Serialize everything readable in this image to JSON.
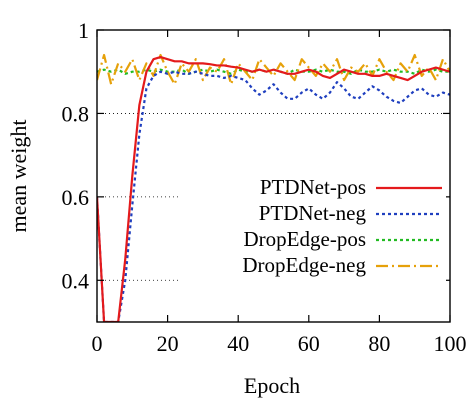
{
  "chart_data": {
    "type": "line",
    "xlabel": "Epoch",
    "ylabel": "mean weight",
    "xlim": [
      0,
      100
    ],
    "ylim": [
      0.3,
      1.0
    ],
    "x_ticks": [
      "0",
      "20",
      "40",
      "60",
      "80",
      "100"
    ],
    "y_ticks": [
      "0.4",
      "0.6",
      "0.8",
      "1"
    ],
    "grid": "horizontal dotted lines at 0.4, 0.6, 0.8",
    "legend_position": "bottom-right",
    "series": [
      {
        "name": "PTDNet-pos",
        "color": "#e41a1c",
        "line_style": "solid",
        "x": [
          0,
          2,
          4,
          6,
          8,
          10,
          12,
          14,
          16,
          18,
          20,
          22,
          24,
          26,
          28,
          30,
          32,
          34,
          36,
          38,
          40,
          42,
          44,
          46,
          48,
          50,
          52,
          54,
          56,
          58,
          60,
          62,
          64,
          66,
          68,
          70,
          72,
          74,
          76,
          78,
          80,
          82,
          84,
          86,
          88,
          90,
          92,
          94,
          96,
          98,
          100
        ],
        "y": [
          0.6,
          0.3,
          0.3,
          0.3,
          0.45,
          0.65,
          0.82,
          0.9,
          0.93,
          0.935,
          0.93,
          0.925,
          0.925,
          0.92,
          0.92,
          0.92,
          0.918,
          0.915,
          0.915,
          0.912,
          0.91,
          0.905,
          0.9,
          0.905,
          0.9,
          0.905,
          0.9,
          0.895,
          0.895,
          0.9,
          0.905,
          0.9,
          0.89,
          0.885,
          0.895,
          0.905,
          0.9,
          0.895,
          0.895,
          0.89,
          0.89,
          0.895,
          0.89,
          0.885,
          0.88,
          0.89,
          0.9,
          0.905,
          0.91,
          0.905,
          0.9
        ]
      },
      {
        "name": "PTDNet-neg",
        "color": "#1f3fbf",
        "line_style": "dotted",
        "x": [
          0,
          2,
          4,
          6,
          8,
          10,
          12,
          14,
          16,
          18,
          20,
          22,
          24,
          26,
          28,
          30,
          32,
          34,
          36,
          38,
          40,
          42,
          44,
          46,
          48,
          50,
          52,
          54,
          56,
          58,
          60,
          62,
          64,
          66,
          68,
          70,
          72,
          74,
          76,
          78,
          80,
          82,
          84,
          86,
          88,
          90,
          92,
          94,
          96,
          98,
          100
        ],
        "y": [
          0.6,
          0.3,
          0.3,
          0.3,
          0.4,
          0.58,
          0.75,
          0.86,
          0.89,
          0.9,
          0.895,
          0.9,
          0.895,
          0.895,
          0.9,
          0.895,
          0.89,
          0.89,
          0.885,
          0.89,
          0.885,
          0.88,
          0.86,
          0.845,
          0.855,
          0.87,
          0.85,
          0.835,
          0.835,
          0.85,
          0.86,
          0.845,
          0.835,
          0.85,
          0.875,
          0.86,
          0.84,
          0.835,
          0.85,
          0.865,
          0.855,
          0.84,
          0.83,
          0.825,
          0.84,
          0.855,
          0.86,
          0.845,
          0.84,
          0.85,
          0.845
        ]
      },
      {
        "name": "DropEdge-pos",
        "color": "#22bb22",
        "line_style": "dotted",
        "x": [
          0,
          2,
          4,
          6,
          8,
          10,
          12,
          14,
          16,
          18,
          20,
          22,
          24,
          26,
          28,
          30,
          32,
          34,
          36,
          38,
          40,
          42,
          44,
          46,
          48,
          50,
          52,
          54,
          56,
          58,
          60,
          62,
          64,
          66,
          68,
          70,
          72,
          74,
          76,
          78,
          80,
          82,
          84,
          86,
          88,
          90,
          92,
          94,
          96,
          98,
          100
        ],
        "y": [
          0.9,
          0.905,
          0.9,
          0.905,
          0.895,
          0.9,
          0.9,
          0.905,
          0.9,
          0.905,
          0.9,
          0.9,
          0.905,
          0.895,
          0.9,
          0.905,
          0.9,
          0.905,
          0.9,
          0.895,
          0.905,
          0.9,
          0.9,
          0.905,
          0.9,
          0.905,
          0.9,
          0.895,
          0.905,
          0.9,
          0.9,
          0.905,
          0.9,
          0.905,
          0.9,
          0.9,
          0.895,
          0.905,
          0.9,
          0.9,
          0.905,
          0.9,
          0.905,
          0.9,
          0.9,
          0.895,
          0.905,
          0.9,
          0.905,
          0.9,
          0.9
        ]
      },
      {
        "name": "DropEdge-neg",
        "color": "#e6a10a",
        "line_style": "dash-dot",
        "x": [
          0,
          2,
          4,
          6,
          8,
          10,
          12,
          14,
          16,
          18,
          20,
          22,
          24,
          26,
          28,
          30,
          32,
          34,
          36,
          38,
          40,
          42,
          44,
          46,
          48,
          50,
          52,
          54,
          56,
          58,
          60,
          62,
          64,
          66,
          68,
          70,
          72,
          74,
          76,
          78,
          80,
          82,
          84,
          86,
          88,
          90,
          92,
          94,
          96,
          98,
          100
        ],
        "y": [
          0.88,
          0.94,
          0.87,
          0.92,
          0.9,
          0.93,
          0.88,
          0.92,
          0.89,
          0.94,
          0.9,
          0.87,
          0.92,
          0.9,
          0.93,
          0.88,
          0.91,
          0.9,
          0.93,
          0.87,
          0.92,
          0.9,
          0.88,
          0.93,
          0.91,
          0.89,
          0.92,
          0.9,
          0.88,
          0.93,
          0.91,
          0.89,
          0.92,
          0.9,
          0.93,
          0.88,
          0.91,
          0.9,
          0.92,
          0.89,
          0.93,
          0.9,
          0.88,
          0.92,
          0.9,
          0.94,
          0.89,
          0.91,
          0.88,
          0.93,
          0.9
        ]
      }
    ]
  }
}
